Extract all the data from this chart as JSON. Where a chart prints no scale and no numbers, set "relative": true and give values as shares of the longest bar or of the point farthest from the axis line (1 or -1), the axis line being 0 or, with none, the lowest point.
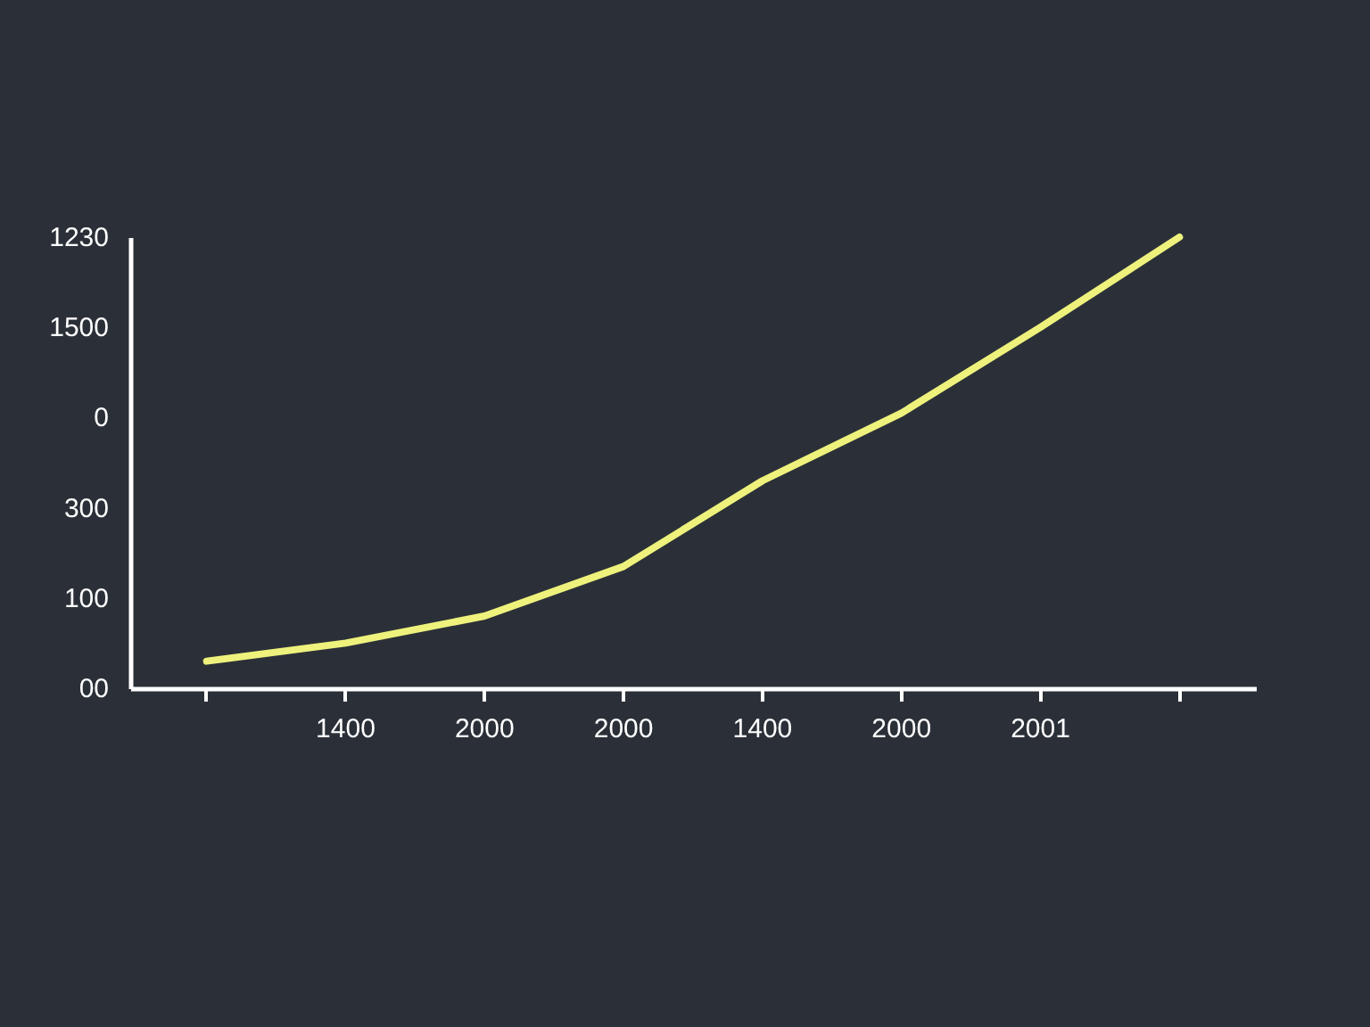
{
  "chart_data": {
    "type": "line",
    "relative": true,
    "categories": [
      null,
      "1400",
      "2000",
      "2000",
      "1400",
      "2000",
      "2001",
      null
    ],
    "series": [
      {
        "color": "#eef27c",
        "values": [
          0.06,
          0.1,
          0.16,
          0.27,
          0.46,
          0.61,
          0.8,
          1
        ]
      }
    ],
    "annotations": [
      "1230",
      "1500",
      "0",
      "300",
      "100",
      "00"
    ],
    "grid": false,
    "marker": "none",
    "line_style": "solid"
  }
}
